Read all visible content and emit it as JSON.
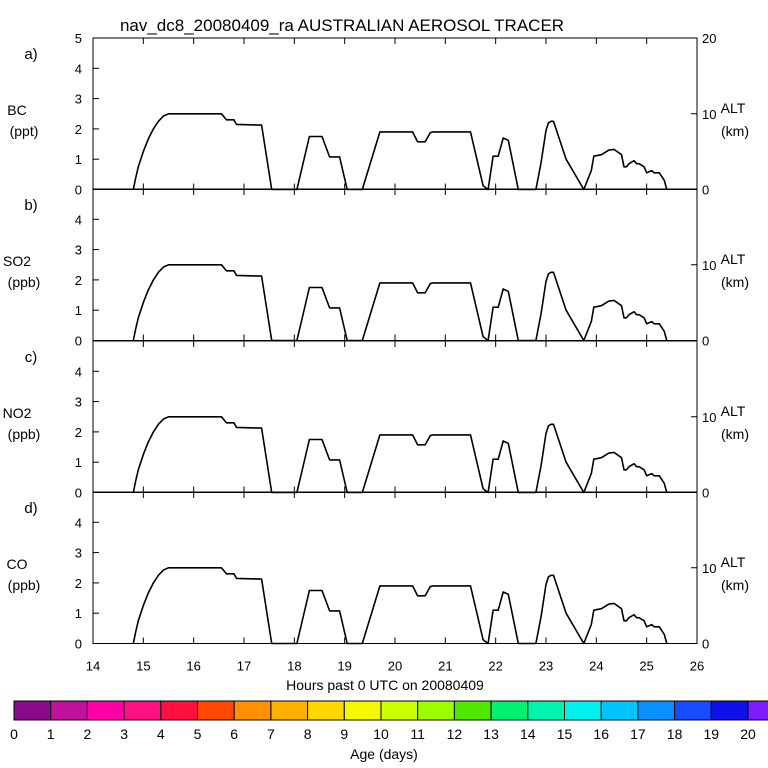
{
  "title": "nav_dc8_20080409_ra AUSTRALIAN AEROSOL TRACER",
  "chart_data": [
    {
      "type": "line",
      "panel_letter": "a)",
      "ylabel": "BC",
      "yunit": "(ppt)",
      "y2label": "ALT",
      "y2unit": "(km)",
      "ylim": [
        0,
        5
      ],
      "y2lim": [
        0,
        20
      ],
      "yticks": [
        "0",
        "1",
        "2",
        "3",
        "4",
        "5"
      ],
      "y2ticks": [
        "0",
        "10",
        "20"
      ],
      "xlim": [
        14,
        26
      ],
      "grid": false,
      "series": [
        {
          "values": []
        }
      ]
    },
    {
      "type": "line",
      "panel_letter": "b)",
      "ylabel": "SO2",
      "yunit": "(ppb)",
      "y2label": "ALT",
      "y2unit": "(km)",
      "ylim": [
        0,
        5
      ],
      "y2lim": [
        0,
        20
      ],
      "yticks": [
        "0",
        "1",
        "2",
        "3",
        "4",
        ""
      ],
      "y2ticks": [
        "0",
        "10",
        ""
      ],
      "xlim": [
        14,
        26
      ],
      "grid": false,
      "series": [
        {
          "values": []
        }
      ]
    },
    {
      "type": "line",
      "panel_letter": "c)",
      "ylabel": "NO2",
      "yunit": "(ppb)",
      "y2label": "ALT",
      "y2unit": "(km)",
      "ylim": [
        0,
        5
      ],
      "y2lim": [
        0,
        20
      ],
      "yticks": [
        "0",
        "1",
        "2",
        "3",
        "4",
        ""
      ],
      "y2ticks": [
        "0",
        "10",
        ""
      ],
      "xlim": [
        14,
        26
      ],
      "grid": false,
      "series": [
        {
          "values": []
        }
      ]
    },
    {
      "type": "line",
      "panel_letter": "d)",
      "ylabel": "CO",
      "yunit": "(ppb)",
      "y2label": "ALT",
      "y2unit": "(km)",
      "ylim": [
        0,
        5
      ],
      "y2lim": [
        0,
        20
      ],
      "yticks": [
        "0",
        "1",
        "2",
        "3",
        "4",
        ""
      ],
      "y2ticks": [
        "0",
        "10",
        ""
      ],
      "xlim": [
        14,
        26
      ],
      "xticks": [
        "14",
        "15",
        "16",
        "17",
        "18",
        "19",
        "20",
        "21",
        "22",
        "23",
        "24",
        "25",
        "26"
      ],
      "xlabel": "Hours past 0 UTC on 20080409",
      "grid": false,
      "series": [
        {
          "values": []
        }
      ]
    }
  ],
  "altitude_trace": {
    "unit": "km",
    "x": [
      14.8,
      14.85,
      14.9,
      15.0,
      15.1,
      15.2,
      15.3,
      15.4,
      15.5,
      16.0,
      16.55,
      16.65,
      16.8,
      16.85,
      17.35,
      17.55,
      17.55,
      18.05,
      18.3,
      18.55,
      18.7,
      18.9,
      19.05,
      19.35,
      19.7,
      20.35,
      20.45,
      20.6,
      20.7,
      20.75,
      21.5,
      21.75,
      21.85,
      21.95,
      22.05,
      22.15,
      22.25,
      22.45,
      22.6,
      22.8,
      22.9,
      23.0,
      23.05,
      23.1,
      23.15,
      23.4,
      23.75,
      23.9,
      23.95,
      24.1,
      24.25,
      24.35,
      24.5,
      24.55,
      24.6,
      24.65,
      24.75,
      24.8,
      24.85,
      24.95,
      25.0,
      25.1,
      25.15,
      25.25,
      25.35,
      25.4
    ],
    "y": [
      0.0,
      1.6,
      3.0,
      5.0,
      6.7,
      8.0,
      9.0,
      9.7,
      10.0,
      10.0,
      10.0,
      9.2,
      9.2,
      8.6,
      8.5,
      0.0,
      0.0,
      0.0,
      7.0,
      7.0,
      4.3,
      4.3,
      0.0,
      0.0,
      7.6,
      7.6,
      6.3,
      6.3,
      7.5,
      7.6,
      7.6,
      0.5,
      0.0,
      4.4,
      4.4,
      6.8,
      6.5,
      0.0,
      0.0,
      0.0,
      3.5,
      7.8,
      8.8,
      9.0,
      9.0,
      4.0,
      0.0,
      2.5,
      4.4,
      4.6,
      5.2,
      5.3,
      4.6,
      3.0,
      3.0,
      3.4,
      3.8,
      3.4,
      3.4,
      3.0,
      2.2,
      2.5,
      2.2,
      2.2,
      1.2,
      0.0
    ]
  },
  "colorbar": {
    "title": "Age (days)",
    "min": 0,
    "max": 20,
    "tick_labels": [
      "0",
      "1",
      "2",
      "3",
      "4",
      "5",
      "6",
      "7",
      "8",
      "9",
      "10",
      "11",
      "12",
      "13",
      "14",
      "15",
      "16",
      "17",
      "18",
      "19",
      "20"
    ],
    "colors": [
      "#8b0a8b",
      "#c0109c",
      "#ff00a8",
      "#ff1080",
      "#ff1040",
      "#ff4a00",
      "#ff9000",
      "#ffb000",
      "#ffd800",
      "#f6f800",
      "#ccff00",
      "#9cff00",
      "#4ee800",
      "#00f070",
      "#00f4b0",
      "#00f0ee",
      "#00c4ff",
      "#0890ff",
      "#1a4cff",
      "#1010e8",
      "#7c1cff"
    ]
  }
}
